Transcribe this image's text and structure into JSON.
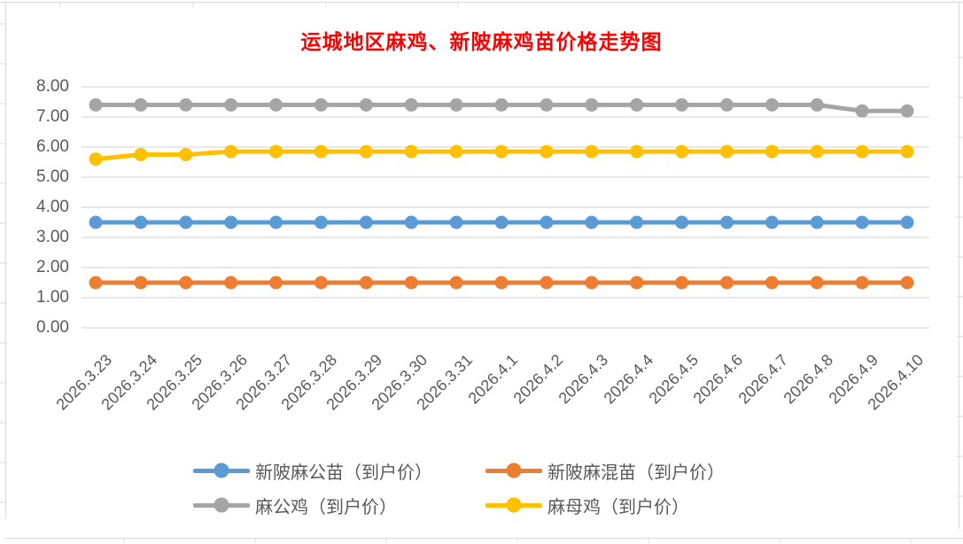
{
  "chart_data": {
    "type": "line",
    "title": "运城地区麻鸡、新陂麻鸡苗价格走势图",
    "title_color": "#FF0000",
    "xlabel": "",
    "ylabel": "",
    "ylim": [
      0,
      8
    ],
    "y_ticks": [
      "8.00",
      "7.00",
      "6.00",
      "5.00",
      "4.00",
      "3.00",
      "2.00",
      "1.00",
      "0.00"
    ],
    "grid": true,
    "grid_color": "#D9D9D9",
    "axis_text_color": "#595959",
    "legend_position": "bottom",
    "categories": [
      "2026.3.23",
      "2026.3.24",
      "2026.3.25",
      "2026.3.26",
      "2026.3.27",
      "2026.3.28",
      "2026.3.29",
      "2026.3.30",
      "2026.3.31",
      "2026.4.1",
      "2026.4.2",
      "2026.4.3",
      "2026.4.4",
      "2026.4.5",
      "2026.4.6",
      "2026.4.7",
      "2026.4.8",
      "2026.4.9",
      "2026.4.10"
    ],
    "series": [
      {
        "name": "新陂麻公苗（到户价）",
        "color": "#5B9BD5",
        "values": [
          3.5,
          3.5,
          3.5,
          3.5,
          3.5,
          3.5,
          3.5,
          3.5,
          3.5,
          3.5,
          3.5,
          3.5,
          3.5,
          3.5,
          3.5,
          3.5,
          3.5,
          3.5,
          3.5
        ]
      },
      {
        "name": "新陂麻混苗（到户价）",
        "color": "#ED7D31",
        "values": [
          1.5,
          1.5,
          1.5,
          1.5,
          1.5,
          1.5,
          1.5,
          1.5,
          1.5,
          1.5,
          1.5,
          1.5,
          1.5,
          1.5,
          1.5,
          1.5,
          1.5,
          1.5,
          1.5
        ]
      },
      {
        "name": "麻公鸡（到户价）",
        "color": "#A5A5A5",
        "values": [
          7.4,
          7.4,
          7.4,
          7.4,
          7.4,
          7.4,
          7.4,
          7.4,
          7.4,
          7.4,
          7.4,
          7.4,
          7.4,
          7.4,
          7.4,
          7.4,
          7.4,
          7.2,
          7.2
        ]
      },
      {
        "name": "麻母鸡（到户价）",
        "color": "#FFC000",
        "values": [
          5.6,
          5.75,
          5.75,
          5.85,
          5.85,
          5.85,
          5.85,
          5.85,
          5.85,
          5.85,
          5.85,
          5.85,
          5.85,
          5.85,
          5.85,
          5.85,
          5.85,
          5.85,
          5.85
        ]
      }
    ]
  }
}
